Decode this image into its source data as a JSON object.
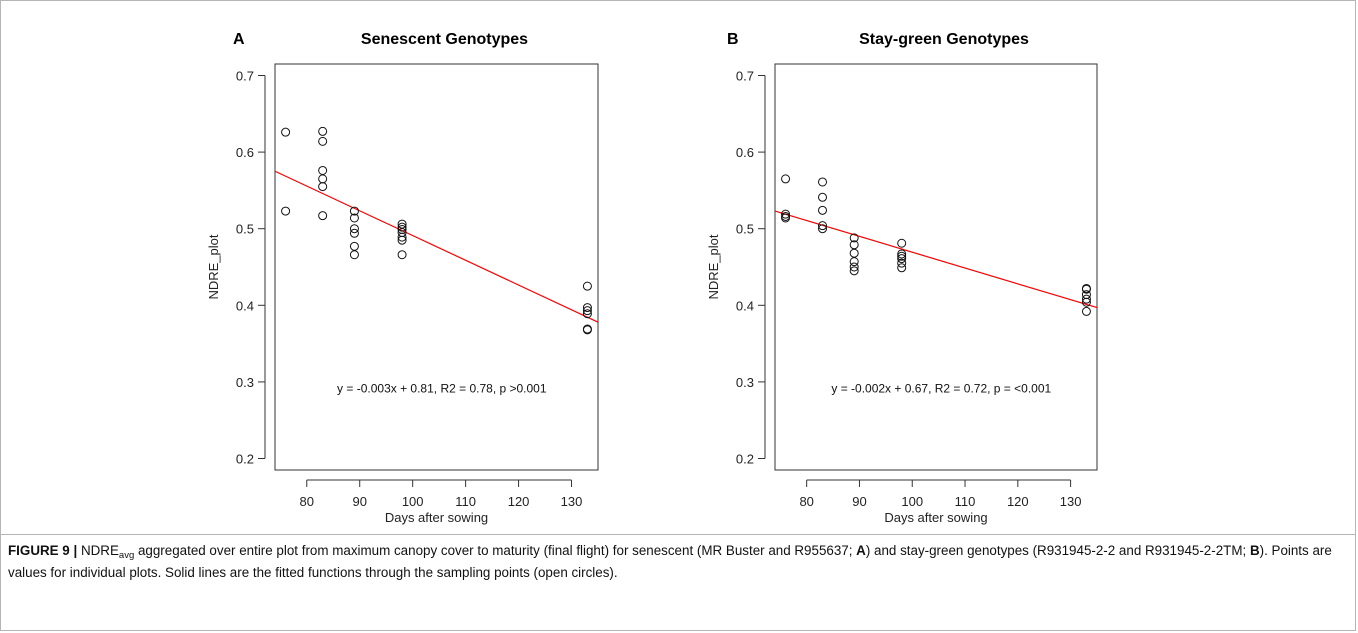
{
  "chart_data": [
    {
      "type": "scatter",
      "panel_label": "A",
      "title": "Senescent Genotypes",
      "xlabel": "Days after sowing",
      "ylabel": "NDRE_plot",
      "xlim": [
        74,
        135
      ],
      "ylim": [
        0.185,
        0.715
      ],
      "xticks": [
        80,
        90,
        100,
        110,
        120,
        130
      ],
      "yticks": [
        0.2,
        0.3,
        0.4,
        0.5,
        0.6,
        0.7
      ],
      "grid": false,
      "points": [
        [
          76,
          0.626
        ],
        [
          76,
          0.523
        ],
        [
          83,
          0.627
        ],
        [
          83,
          0.614
        ],
        [
          83,
          0.576
        ],
        [
          83,
          0.565
        ],
        [
          83,
          0.555
        ],
        [
          83,
          0.517
        ],
        [
          89,
          0.523
        ],
        [
          89,
          0.514
        ],
        [
          89,
          0.5
        ],
        [
          89,
          0.494
        ],
        [
          89,
          0.477
        ],
        [
          89,
          0.466
        ],
        [
          98,
          0.506
        ],
        [
          98,
          0.502
        ],
        [
          98,
          0.499
        ],
        [
          98,
          0.495
        ],
        [
          98,
          0.489
        ],
        [
          98,
          0.485
        ],
        [
          98,
          0.466
        ],
        [
          133,
          0.425
        ],
        [
          133,
          0.397
        ],
        [
          133,
          0.393
        ],
        [
          133,
          0.389
        ],
        [
          133,
          0.369
        ],
        [
          133,
          0.368
        ]
      ],
      "fit_line": {
        "color": "#ff0000",
        "x": [
          74,
          135
        ],
        "y": [
          0.575,
          0.378
        ]
      },
      "annotation": {
        "text": "y = -0.003x + 0.81, R2 = 0.78, p >0.001",
        "x": 105.5,
        "y": 0.286
      }
    },
    {
      "type": "scatter",
      "panel_label": "B",
      "title": "Stay-green Genotypes",
      "xlabel": "Days after sowing",
      "ylabel": "NDRE_plot",
      "xlim": [
        74,
        135
      ],
      "ylim": [
        0.185,
        0.715
      ],
      "xticks": [
        80,
        90,
        100,
        110,
        120,
        130
      ],
      "yticks": [
        0.2,
        0.3,
        0.4,
        0.5,
        0.6,
        0.7
      ],
      "grid": false,
      "points": [
        [
          76,
          0.565
        ],
        [
          76,
          0.519
        ],
        [
          76,
          0.516
        ],
        [
          76,
          0.514
        ],
        [
          83,
          0.561
        ],
        [
          83,
          0.541
        ],
        [
          83,
          0.524
        ],
        [
          83,
          0.504
        ],
        [
          83,
          0.5
        ],
        [
          89,
          0.488
        ],
        [
          89,
          0.479
        ],
        [
          89,
          0.468
        ],
        [
          89,
          0.457
        ],
        [
          89,
          0.45
        ],
        [
          89,
          0.445
        ],
        [
          98,
          0.481
        ],
        [
          98,
          0.467
        ],
        [
          98,
          0.464
        ],
        [
          98,
          0.461
        ],
        [
          98,
          0.455
        ],
        [
          98,
          0.449
        ],
        [
          133,
          0.422
        ],
        [
          133,
          0.421
        ],
        [
          133,
          0.414
        ],
        [
          133,
          0.408
        ],
        [
          133,
          0.404
        ],
        [
          133,
          0.392
        ]
      ],
      "fit_line": {
        "color": "#ff0000",
        "x": [
          74,
          135
        ],
        "y": [
          0.523,
          0.397
        ]
      },
      "annotation": {
        "text": "y = -0.002x + 0.67, R2 = 0.72, p = <0.001",
        "x": 105.5,
        "y": 0.286
      }
    }
  ],
  "caption": {
    "label": "FIGURE 9 |",
    "t1": " NDRE",
    "t1_sub": "avg",
    "t2": " aggregated over entire plot from maximum canopy cover to maturity (final flight) for senescent (MR Buster and R955637; ",
    "b1": "A",
    "t3": ") and stay-green genotypes (R931945-2-2 and R931945-2-2TM; ",
    "b2": "B",
    "t4": "). Points are values for individual plots. Solid lines are the fitted functions through the sampling points (open circles)."
  }
}
